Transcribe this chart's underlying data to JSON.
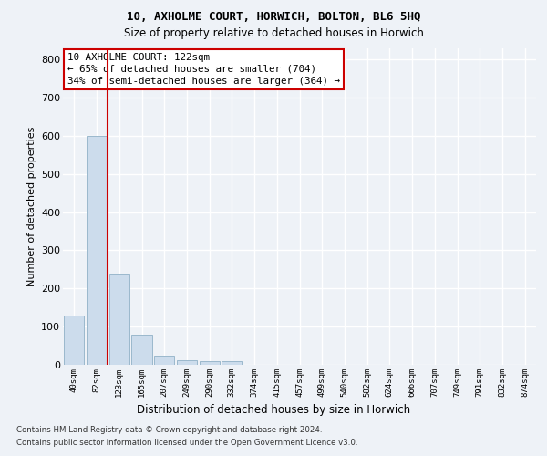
{
  "title1": "10, AXHOLME COURT, HORWICH, BOLTON, BL6 5HQ",
  "title2": "Size of property relative to detached houses in Horwich",
  "xlabel": "Distribution of detached houses by size in Horwich",
  "ylabel": "Number of detached properties",
  "categories": [
    "40sqm",
    "82sqm",
    "123sqm",
    "165sqm",
    "207sqm",
    "249sqm",
    "290sqm",
    "332sqm",
    "374sqm",
    "415sqm",
    "457sqm",
    "499sqm",
    "540sqm",
    "582sqm",
    "624sqm",
    "666sqm",
    "707sqm",
    "749sqm",
    "791sqm",
    "832sqm",
    "874sqm"
  ],
  "values": [
    130,
    600,
    238,
    80,
    25,
    12,
    10,
    10,
    0,
    0,
    0,
    0,
    0,
    0,
    0,
    0,
    0,
    0,
    0,
    0,
    0
  ],
  "bar_color": "#ccdcec",
  "bar_edge_color": "#9ab8cc",
  "vline_position": 1.5,
  "annotation_line1": "10 AXHOLME COURT: 122sqm",
  "annotation_line2": "← 65% of detached houses are smaller (704)",
  "annotation_line3": "34% of semi-detached houses are larger (364) →",
  "annotation_box_color": "#ffffff",
  "annotation_border_color": "#cc0000",
  "vline_color": "#cc0000",
  "ylim": [
    0,
    830
  ],
  "yticks": [
    0,
    100,
    200,
    300,
    400,
    500,
    600,
    700,
    800
  ],
  "background_color": "#eef2f7",
  "grid_color": "#ffffff",
  "footer1": "Contains HM Land Registry data © Crown copyright and database right 2024.",
  "footer2": "Contains public sector information licensed under the Open Government Licence v3.0."
}
